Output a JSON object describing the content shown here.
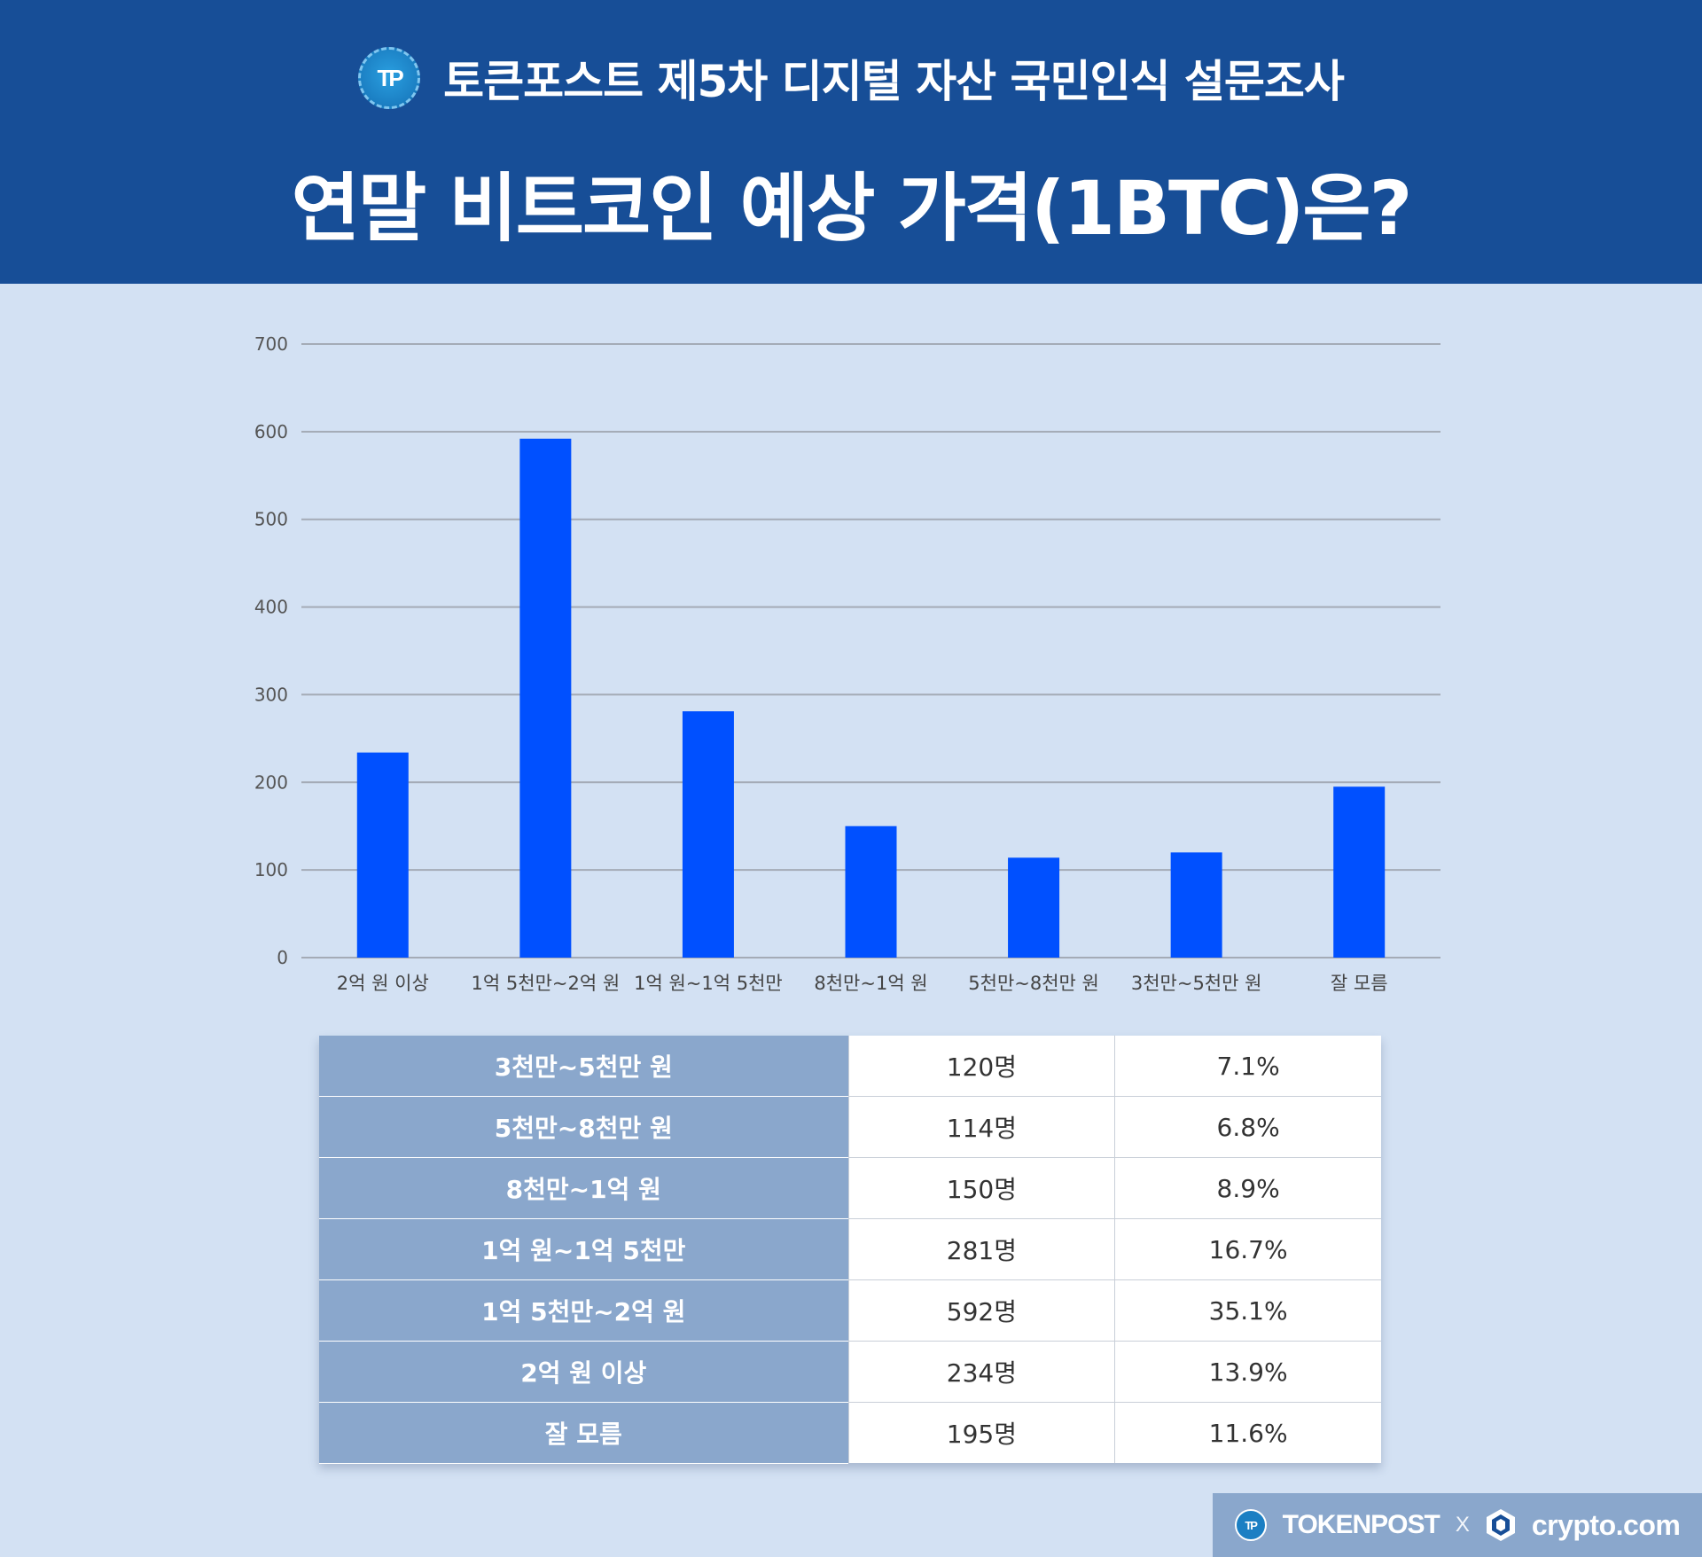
{
  "header": {
    "logo_text": "TP",
    "subtitle": "토큰포스트 제5차 디지털 자산 국민인식 설문조사",
    "title": "연말 비트코인 예상 가격(1BTC)은?"
  },
  "chart_data": {
    "type": "bar",
    "title": "",
    "xlabel": "",
    "ylabel": "",
    "categories": [
      "2억 원 이상",
      "1억 5천만~2억 원",
      "1억 원~1억 5천만",
      "8천만~1억 원",
      "5천만~8천만 원",
      "3천만~5천만 원",
      "잘 모름"
    ],
    "values": [
      234,
      592,
      281,
      150,
      114,
      120,
      195
    ],
    "ylim": [
      0,
      700
    ],
    "yticks": [
      0,
      100,
      200,
      300,
      400,
      500,
      600,
      700
    ],
    "grid": true,
    "bar_color": "#0050ff",
    "grid_color": "#a4abb6"
  },
  "table": {
    "rows": [
      {
        "label": "3천만~5천만 원",
        "count": "120명",
        "pct": "7.1%"
      },
      {
        "label": "5천만~8천만 원",
        "count": "114명",
        "pct": "6.8%"
      },
      {
        "label": "8천만~1억 원",
        "count": "150명",
        "pct": "8.9%"
      },
      {
        "label": "1억 원~1억 5천만",
        "count": "281명",
        "pct": "16.7%"
      },
      {
        "label": "1억 5천만~2억 원",
        "count": "592명",
        "pct": "35.1%"
      },
      {
        "label": "2억 원 이상",
        "count": "234명",
        "pct": "13.9%"
      },
      {
        "label": "잘 모름",
        "count": "195명",
        "pct": "11.6%"
      }
    ]
  },
  "footer": {
    "logo_text": "TP",
    "brand1": "TOKENPOST",
    "separator": "X",
    "brand2": "crypto.com"
  },
  "colors": {
    "header_bg": "#174e97",
    "page_bg": "#d3e1f3",
    "table_label_bg": "#8aa7cc",
    "footer_bg": "#8aa7cc"
  }
}
